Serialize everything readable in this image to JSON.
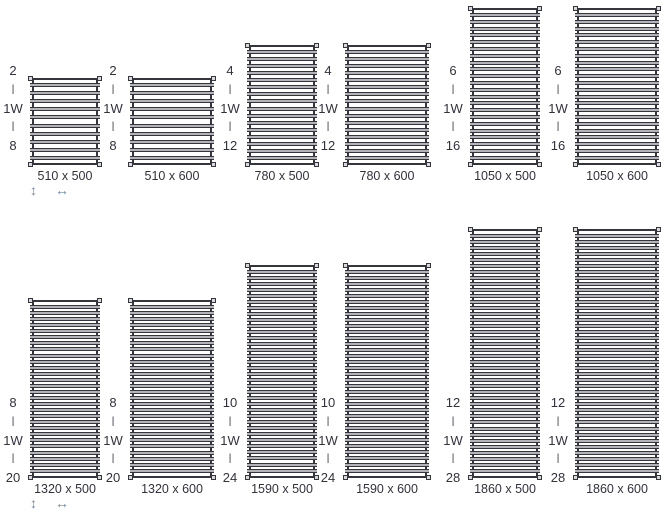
{
  "diagram_title": "towel-radiator-size-chart",
  "colors": {
    "frame": "#35353d",
    "bar_fill": "#b4b4b8",
    "text": "#32323c",
    "arrow": "#7088a6",
    "background": "#ffffff"
  },
  "glyphs": {
    "v_arrow": "↕",
    "h_arrow": "↔",
    "separator": "|"
  },
  "annotation_mid_label": "1W",
  "radiators": [
    {
      "row": 1,
      "col": 1,
      "height_mm": 510,
      "width_mm": 500,
      "label": "510 x 500",
      "bars_top": "2",
      "bars_mid": "1W",
      "bars_bottom": "8",
      "show_arrows": true
    },
    {
      "row": 1,
      "col": 2,
      "height_mm": 510,
      "width_mm": 600,
      "label": "510 x 600",
      "bars_top": "2",
      "bars_mid": "1W",
      "bars_bottom": "8",
      "show_arrows": false
    },
    {
      "row": 1,
      "col": 3,
      "height_mm": 780,
      "width_mm": 500,
      "label": "780 x 500",
      "bars_top": "4",
      "bars_mid": "1W",
      "bars_bottom": "12",
      "show_arrows": false
    },
    {
      "row": 1,
      "col": 4,
      "height_mm": 780,
      "width_mm": 600,
      "label": "780 x 600",
      "bars_top": "4",
      "bars_mid": "1W",
      "bars_bottom": "12",
      "show_arrows": false
    },
    {
      "row": 1,
      "col": 5,
      "height_mm": 1050,
      "width_mm": 500,
      "label": "1050 x 500",
      "bars_top": "6",
      "bars_mid": "1W",
      "bars_bottom": "16",
      "show_arrows": false
    },
    {
      "row": 1,
      "col": 6,
      "height_mm": 1050,
      "width_mm": 600,
      "label": "1050 x 600",
      "bars_top": "6",
      "bars_mid": "1W",
      "bars_bottom": "16",
      "show_arrows": false
    },
    {
      "row": 2,
      "col": 1,
      "height_mm": 1320,
      "width_mm": 500,
      "label": "1320 x 500",
      "bars_top": "8",
      "bars_mid": "1W",
      "bars_bottom": "20",
      "show_arrows": true
    },
    {
      "row": 2,
      "col": 2,
      "height_mm": 1320,
      "width_mm": 600,
      "label": "1320 x 600",
      "bars_top": "8",
      "bars_mid": "1W",
      "bars_bottom": "20",
      "show_arrows": false
    },
    {
      "row": 2,
      "col": 3,
      "height_mm": 1590,
      "width_mm": 500,
      "label": "1590 x 500",
      "bars_top": "10",
      "bars_mid": "1W",
      "bars_bottom": "24",
      "show_arrows": false
    },
    {
      "row": 2,
      "col": 4,
      "height_mm": 1590,
      "width_mm": 600,
      "label": "1590 x 600",
      "bars_top": "10",
      "bars_mid": "1W",
      "bars_bottom": "24",
      "show_arrows": false
    },
    {
      "row": 2,
      "col": 5,
      "height_mm": 1860,
      "width_mm": 500,
      "label": "1860 x 500",
      "bars_top": "12",
      "bars_mid": "1W",
      "bars_bottom": "28",
      "show_arrows": false
    },
    {
      "row": 2,
      "col": 6,
      "height_mm": 1860,
      "width_mm": 600,
      "label": "1860 x 600",
      "bars_top": "12",
      "bars_mid": "1W",
      "bars_bottom": "28",
      "show_arrows": false
    }
  ]
}
